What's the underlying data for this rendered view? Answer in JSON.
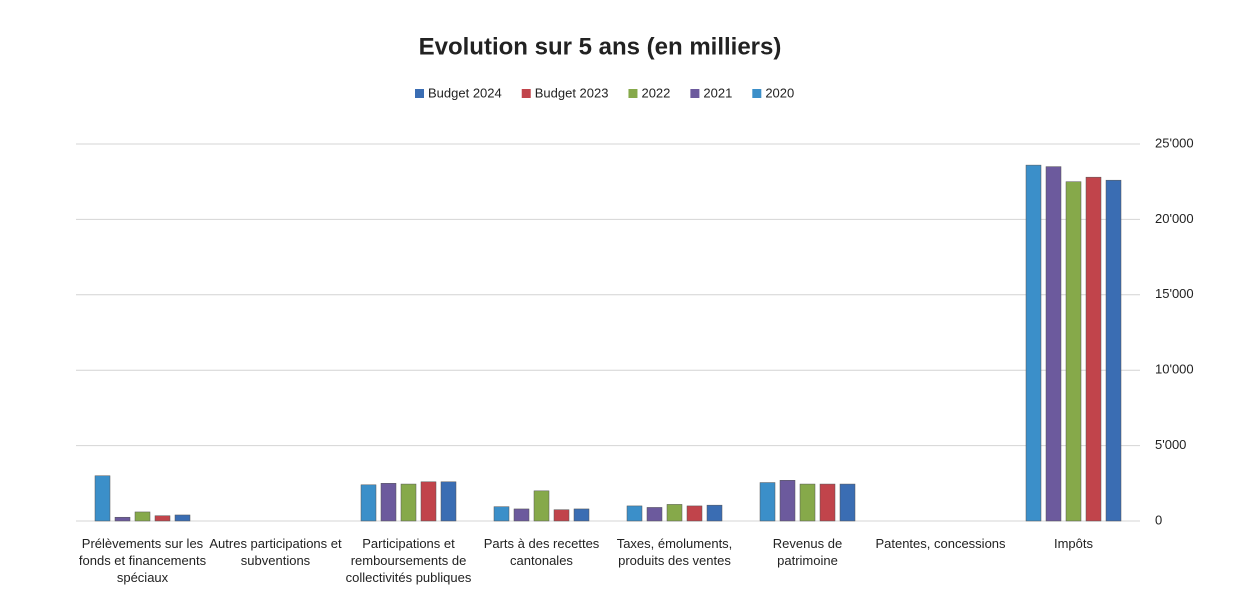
{
  "chart_data": {
    "type": "bar",
    "title": "Evolution sur 5 ans (en milliers)",
    "categories": [
      "Prélèvements sur les fonds et financements spéciaux",
      "Autres participations et subventions",
      "Participations et remboursements de collectivités publiques",
      "Parts à des recettes cantonales",
      "Taxes, émoluments, produits des ventes",
      "Revenus de patrimoine",
      "Patentes, concessions",
      "Impôts"
    ],
    "series": [
      {
        "name": "Budget 2024",
        "color": "#3a6db3",
        "values": [
          400,
          0,
          2600,
          800,
          1050,
          2450,
          0,
          22600
        ]
      },
      {
        "name": "Budget 2023",
        "color": "#c1444b",
        "values": [
          350,
          0,
          2600,
          750,
          1000,
          2450,
          0,
          22800
        ]
      },
      {
        "name": "2022",
        "color": "#86a94a",
        "values": [
          600,
          0,
          2450,
          2000,
          1100,
          2450,
          0,
          22500
        ]
      },
      {
        "name": "2021",
        "color": "#6c5a9d",
        "values": [
          250,
          0,
          2500,
          800,
          900,
          2700,
          0,
          23500
        ]
      },
      {
        "name": "2020",
        "color": "#3b8fc9",
        "values": [
          3000,
          0,
          2400,
          950,
          1000,
          2550,
          0,
          23600
        ]
      }
    ],
    "ylim": [
      0,
      25000
    ],
    "yticks": [
      0,
      {
        "value": 5000,
        "label": "5'000"
      },
      {
        "value": 10000,
        "label": "10'000"
      },
      {
        "value": 15000,
        "label": "15'000"
      },
      {
        "value": 20000,
        "label": "20'000"
      },
      {
        "value": 25000,
        "label": "25'000"
      }
    ],
    "grid": true,
    "legend": "top"
  }
}
